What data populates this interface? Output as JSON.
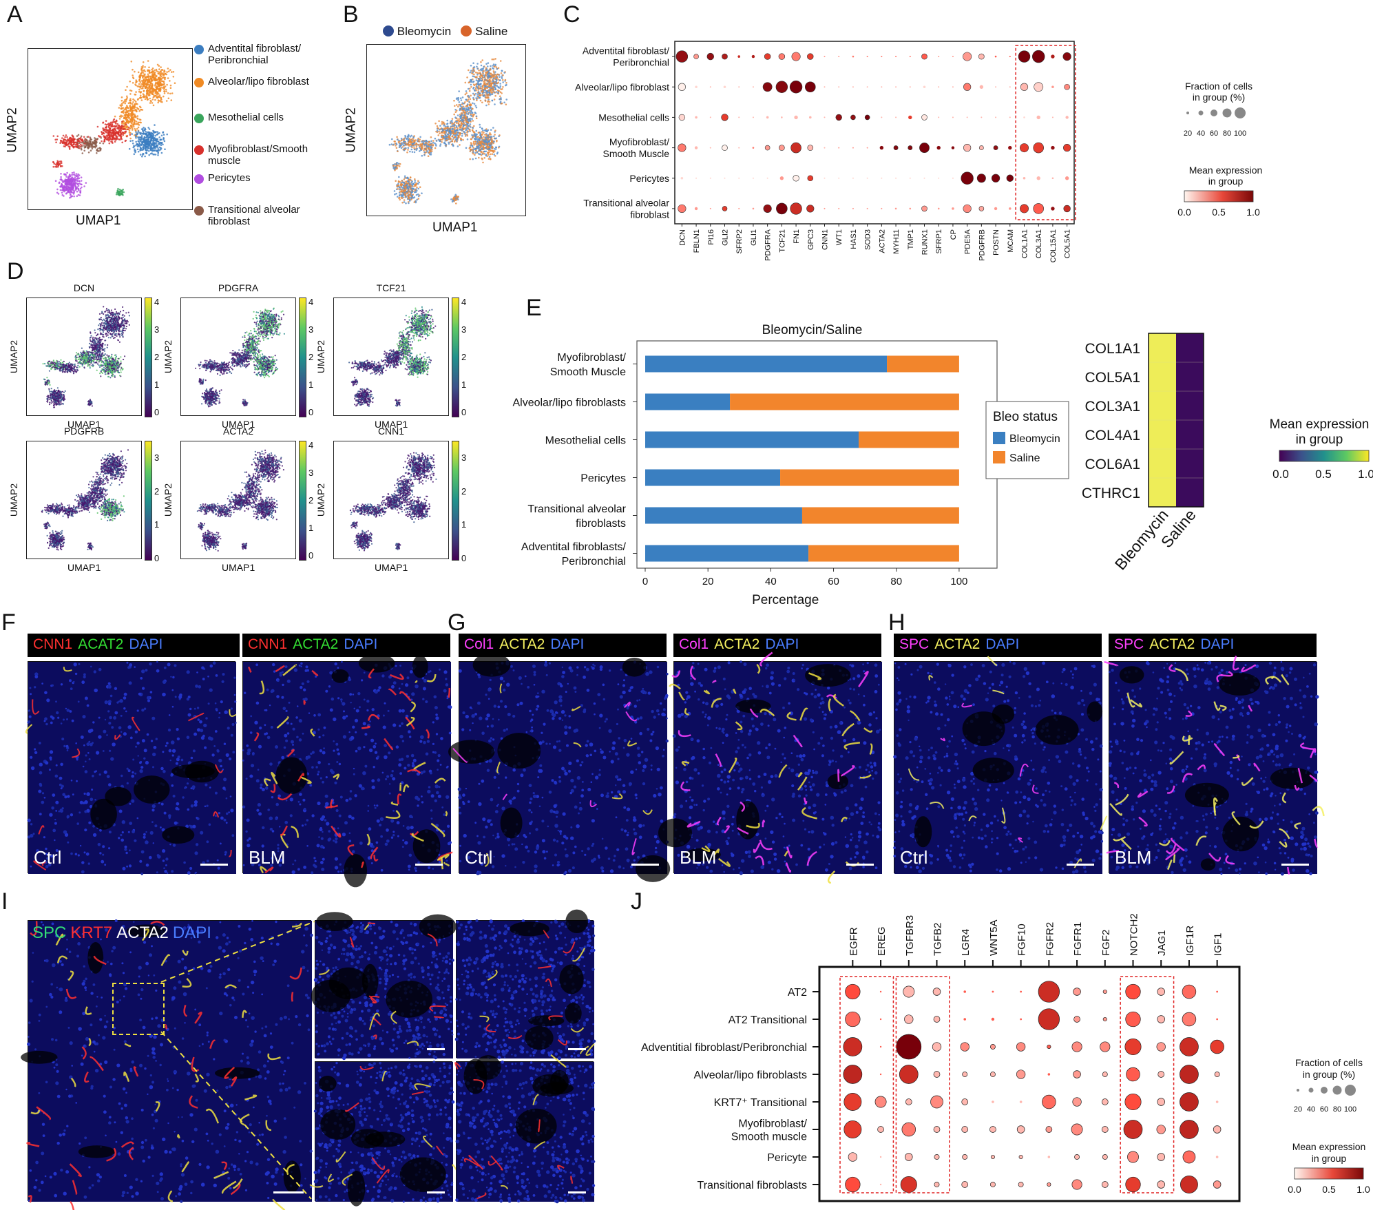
{
  "panels": {
    "A": "A",
    "B": "B",
    "C": "C",
    "D": "D",
    "E": "E",
    "F": "F",
    "G": "G",
    "H": "H",
    "I": "I",
    "J": "J"
  },
  "panelA": {
    "xlabel": "UMAP1",
    "ylabel": "UMAP2",
    "legend": [
      {
        "label": "Adventital fibroblast/ Peribronchial",
        "color": "#3b7dc0"
      },
      {
        "label": "Alveolar/lipo fibroblast",
        "color": "#f08a24"
      },
      {
        "label": "Mesothelial cells",
        "color": "#3aa55c"
      },
      {
        "label": "Myofibroblast/Smooth muscle",
        "color": "#d8312c"
      },
      {
        "label": "Pericytes",
        "color": "#b14de0"
      },
      {
        "label": "Transitional alveolar fibroblast",
        "color": "#8a5a48"
      }
    ]
  },
  "panelB": {
    "xlabel": "UMAP1",
    "ylabel": "UMAP2",
    "legend": [
      {
        "label": "Bleomycin",
        "color": "#2e4a8f"
      },
      {
        "label": "Saline",
        "color": "#d8642a"
      }
    ]
  },
  "panelC": {
    "rows": [
      "Adventital fibroblast/ Peribronchial",
      "Alveolar/lipo fibroblast",
      "Mesothelial cells",
      "Myofibroblast/ Smooth Muscle",
      "Pericytes",
      "Transitional alveolar fibroblast"
    ],
    "genes": [
      "DCN",
      "FBLN1",
      "PI16",
      "GLI2",
      "SFRP2",
      "GLI1",
      "PDGFRA",
      "TCF21",
      "FN1",
      "GPC3",
      "CNN1",
      "WT1",
      "HAS1",
      "SOD3",
      "ACTA2",
      "MYH11",
      "TMP1",
      "RUNX1",
      "SFRP1",
      "CP",
      "PDE5A",
      "PDGFRB",
      "POSTN",
      "MCAM",
      "COL1A1",
      "COL3A1",
      "COL15A1",
      "COL5A1"
    ],
    "size_title": "Fraction of cells in group (%)",
    "size_ticks": [
      "20",
      "40",
      "60",
      "80",
      "100"
    ],
    "color_title": "Mean expression in group",
    "color_ticks": [
      "0.0",
      "0.5",
      "1.0"
    ]
  },
  "panelD": {
    "xlabel": "UMAP1",
    "ylabel": "UMAP2",
    "plots": [
      {
        "gene": "DCN",
        "ticks": [
          "4",
          "3",
          "2",
          "1",
          "0"
        ]
      },
      {
        "gene": "PDGFRA",
        "ticks": [
          "4",
          "3",
          "2",
          "1",
          "0"
        ]
      },
      {
        "gene": "TCF21",
        "ticks": [
          "4",
          "3",
          "2",
          "1",
          "0"
        ]
      },
      {
        "gene": "PDGFRB",
        "ticks": [
          "3",
          "2",
          "1",
          "0"
        ]
      },
      {
        "gene": "ACTA2",
        "ticks": [
          "4",
          "3",
          "2",
          "1",
          "0"
        ]
      },
      {
        "gene": "CNN1",
        "ticks": [
          "3",
          "2",
          "1",
          "0"
        ]
      }
    ]
  },
  "chart_data": {
    "type": "bar",
    "title": "Bleomycin/Saline",
    "xlabel": "Percentage",
    "ylabel": "",
    "xlim": [
      0,
      100
    ],
    "xticks": [
      "0",
      "20",
      "40",
      "60",
      "80",
      "100"
    ],
    "categories": [
      "Myofibroblast/ Smooth Muscle",
      "Alveolar/lipo fibroblasts",
      "Mesothelial cells",
      "Pericytes",
      "Transitional alveolar fibroblasts",
      "Adventital fibroblasts/ Peribronchial"
    ],
    "series": [
      {
        "name": "Bleomycin",
        "color": "#3a7fc1",
        "values": [
          77,
          27,
          68,
          43,
          50,
          52
        ]
      },
      {
        "name": "Saline",
        "color": "#f2852c",
        "values": [
          23,
          73,
          32,
          57,
          50,
          48
        ]
      }
    ],
    "legend_title": "Bleo status",
    "stacked": true
  },
  "heatmap": {
    "genes": [
      "COL1A1",
      "COL5A1",
      "COL3A1",
      "COL4A1",
      "COL6A1",
      "CTHRC1"
    ],
    "columns": [
      "Bleomycin",
      "Saline"
    ],
    "colorbar_title": "Mean expression in group",
    "colorbar_ticks": [
      "0.0",
      "0.5",
      "1.0"
    ]
  },
  "panelF": {
    "left_header": [
      {
        "t": "CNN1",
        "c": "#ff3030"
      },
      {
        "t": "ACAT2",
        "c": "#33dd33"
      },
      {
        "t": "DAPI",
        "c": "#4a7dff"
      }
    ],
    "right_header": [
      {
        "t": "CNN1",
        "c": "#ff3030"
      },
      {
        "t": "ACTA2",
        "c": "#33dd33"
      },
      {
        "t": "DAPI",
        "c": "#4a7dff"
      }
    ],
    "left_tag": "Ctrl",
    "right_tag": "BLM"
  },
  "panelG": {
    "left_header": [
      {
        "t": "Col1",
        "c": "#ff40ff"
      },
      {
        "t": "ACTA2",
        "c": "#f4f060"
      },
      {
        "t": "DAPI",
        "c": "#4a7dff"
      }
    ],
    "right_header": [
      {
        "t": "Col1",
        "c": "#ff40ff"
      },
      {
        "t": "ACTA2",
        "c": "#f4f060"
      },
      {
        "t": "DAPI",
        "c": "#4a7dff"
      }
    ],
    "left_tag": "Ctrl",
    "right_tag": "BLM"
  },
  "panelH": {
    "left_header": [
      {
        "t": "SPC",
        "c": "#ff40ff"
      },
      {
        "t": "ACTA2",
        "c": "#f4f060"
      },
      {
        "t": "DAPI",
        "c": "#4a7dff"
      }
    ],
    "right_header": [
      {
        "t": "SPC",
        "c": "#ff40ff"
      },
      {
        "t": "ACTA2",
        "c": "#f4f060"
      },
      {
        "t": "DAPI",
        "c": "#4a7dff"
      }
    ],
    "left_tag": "Ctrl",
    "right_tag": "BLM"
  },
  "panelI": {
    "header": [
      {
        "t": "SPC",
        "c": "#33dd77"
      },
      {
        "t": "KRT7",
        "c": "#ff3030"
      },
      {
        "t": "ACTA2",
        "c": "#ffffff"
      },
      {
        "t": "DAPI",
        "c": "#4a7dff"
      }
    ]
  },
  "panelJ": {
    "rows": [
      "AT2",
      "AT2 Transitional",
      "Adventitial fibroblast/Peribronchial",
      "Alveolar/lipo fibroblasts",
      "KRT7⁺ Transitional",
      "Myofibroblast/ Smooth muscle",
      "Pericyte",
      "Transitional fibroblasts"
    ],
    "genes": [
      "EGFR",
      "EREG",
      "TGFBR3",
      "TGFB2",
      "LGR4",
      "WNT5A",
      "FGF10",
      "FGFR2",
      "FGFR1",
      "FGF2",
      "NOTCH2",
      "JAG1",
      "IGF1R",
      "IGF1"
    ],
    "size_title": "Fraction of cells in group (%)",
    "size_ticks": [
      "20",
      "40",
      "60",
      "80",
      "100"
    ],
    "color_title": "Mean expression in group",
    "color_ticks": [
      "0.0",
      "0.5",
      "1.0"
    ]
  }
}
